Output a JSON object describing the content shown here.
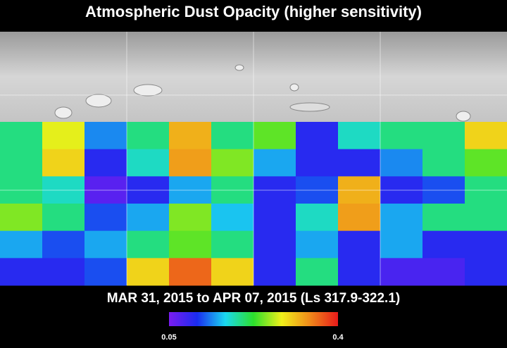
{
  "header": {
    "title": "Atmospheric Dust Opacity (higher sensitivity)"
  },
  "map": {
    "date_range": "MAR 31, 2015 to APR 07, 2015 (Ls 317.9-322.1)",
    "dust_grid": [
      [
        0.2,
        0.28,
        0.14,
        0.2,
        0.32,
        0.2,
        0.24,
        0.1,
        0.18,
        0.2,
        0.2,
        0.3
      ],
      [
        0.2,
        0.3,
        0.1,
        0.18,
        0.33,
        0.25,
        0.15,
        0.1,
        0.1,
        0.14,
        0.2,
        0.24
      ],
      [
        0.2,
        0.18,
        0.07,
        0.1,
        0.15,
        0.2,
        0.1,
        0.12,
        0.32,
        0.1,
        0.12,
        0.2
      ],
      [
        0.25,
        0.2,
        0.12,
        0.15,
        0.25,
        0.16,
        0.1,
        0.18,
        0.33,
        0.15,
        0.2,
        0.2
      ],
      [
        0.15,
        0.12,
        0.15,
        0.2,
        0.24,
        0.2,
        0.1,
        0.15,
        0.1,
        0.15,
        0.1,
        0.1
      ],
      [
        0.1,
        0.1,
        0.12,
        0.3,
        0.36,
        0.3,
        0.1,
        0.2,
        0.1,
        0.08,
        0.08,
        0.1
      ]
    ],
    "colorbar": {
      "min": 0.05,
      "max": 0.4,
      "colors": [
        "#7a1cf0",
        "#1a2cf0",
        "#1ad8f0",
        "#2ce02c",
        "#f0f01a",
        "#f08a1a",
        "#e81a1a"
      ]
    }
  }
}
